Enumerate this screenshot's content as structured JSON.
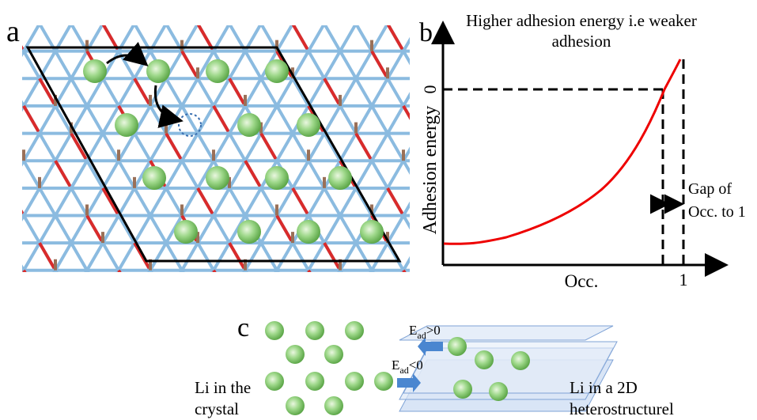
{
  "panel_a": {
    "label": "a"
  },
  "panel_b": {
    "label": "b",
    "title": [
      "Higher adhesion energy i.e weaker",
      "adhesion"
    ],
    "y_label": "Adhesion energy",
    "y_tick": "0",
    "x_label": "Occ.",
    "x_tick": "1",
    "gap_note": [
      "Gap of",
      "Occ. to 1"
    ]
  },
  "panel_c": {
    "label": "c",
    "arrow_top": {
      "base": "E",
      "sub": "ad",
      "rest": ">0"
    },
    "arrow_bottom": {
      "base": "E",
      "sub": "ad",
      "rest": "<0"
    },
    "left_caption": [
      "Li in the",
      "crystal"
    ],
    "right_caption": [
      "Li in a 2D",
      "heterostructurel"
    ]
  }
}
